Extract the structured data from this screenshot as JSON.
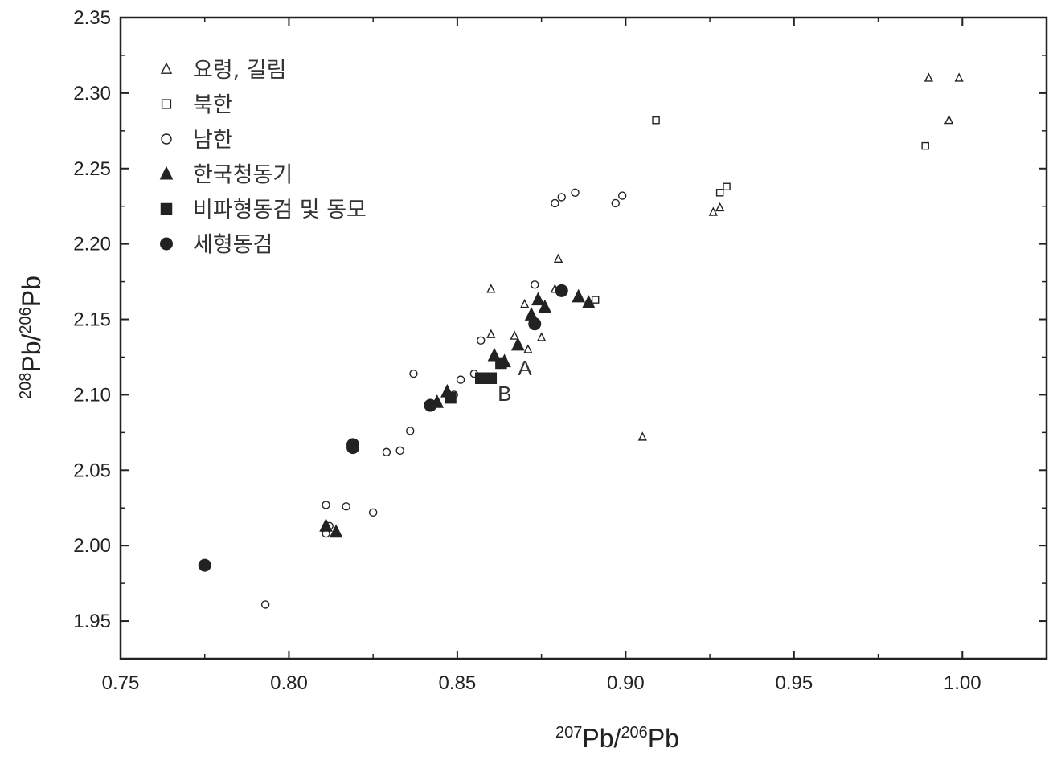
{
  "chart_data": {
    "type": "scatter",
    "xlabel": {
      "pre_sup": "207",
      "base": "Pb/",
      "post_sup": "206",
      "tail": "Pb"
    },
    "ylabel": {
      "pre_sup": "208",
      "base": "Pb/",
      "post_sup": "206",
      "tail": "Pb"
    },
    "xlim": [
      0.75,
      1.025
    ],
    "ylim": [
      1.925,
      2.35
    ],
    "xticks": [
      "0.75",
      "0.80",
      "0.85",
      "0.90",
      "0.95",
      "1.00"
    ],
    "yticks": [
      "1.95",
      "2.00",
      "2.05",
      "2.10",
      "2.15",
      "2.20",
      "2.25",
      "2.30",
      "2.35"
    ],
    "grid": false,
    "legend_position": "top-left",
    "series": [
      {
        "name": "요령, 길림",
        "marker": "triangle-open",
        "points": [
          [
            0.99,
            2.31
          ],
          [
            0.999,
            2.31
          ],
          [
            0.996,
            2.282
          ],
          [
            0.926,
            2.221
          ],
          [
            0.928,
            2.224
          ],
          [
            0.88,
            2.19
          ],
          [
            0.86,
            2.17
          ],
          [
            0.87,
            2.16
          ],
          [
            0.86,
            2.14
          ],
          [
            0.867,
            2.139
          ],
          [
            0.875,
            2.138
          ],
          [
            0.871,
            2.13
          ],
          [
            0.905,
            2.072
          ],
          [
            0.879,
            2.17
          ]
        ]
      },
      {
        "name": "북한",
        "marker": "square-open",
        "points": [
          [
            0.909,
            2.282
          ],
          [
            0.989,
            2.265
          ],
          [
            0.928,
            2.234
          ],
          [
            0.93,
            2.238
          ],
          [
            0.891,
            2.163
          ]
        ]
      },
      {
        "name": "남한",
        "marker": "circle-open",
        "points": [
          [
            0.879,
            2.227
          ],
          [
            0.881,
            2.231
          ],
          [
            0.885,
            2.234
          ],
          [
            0.897,
            2.227
          ],
          [
            0.899,
            2.232
          ],
          [
            0.873,
            2.173
          ],
          [
            0.857,
            2.136
          ],
          [
            0.837,
            2.114
          ],
          [
            0.851,
            2.11
          ],
          [
            0.855,
            2.114
          ],
          [
            0.849,
            2.1
          ],
          [
            0.836,
            2.076
          ],
          [
            0.829,
            2.062
          ],
          [
            0.833,
            2.063
          ],
          [
            0.811,
            2.027
          ],
          [
            0.817,
            2.026
          ],
          [
            0.825,
            2.022
          ],
          [
            0.812,
            2.013
          ],
          [
            0.811,
            2.008
          ],
          [
            0.793,
            1.961
          ]
        ]
      },
      {
        "name": "한국청동기",
        "marker": "triangle-filled",
        "points": [
          [
            0.874,
            2.163
          ],
          [
            0.876,
            2.158
          ],
          [
            0.872,
            2.153
          ],
          [
            0.886,
            2.165
          ],
          [
            0.889,
            2.161
          ],
          [
            0.868,
            2.133
          ],
          [
            0.861,
            2.126
          ],
          [
            0.864,
            2.122
          ],
          [
            0.847,
            2.102
          ],
          [
            0.844,
            2.095
          ],
          [
            0.811,
            2.013
          ],
          [
            0.814,
            2.009
          ]
        ]
      },
      {
        "name": "비파형동검 및 동모",
        "marker": "square-filled",
        "points": [
          [
            0.863,
            2.121
          ],
          [
            0.86,
            2.111
          ],
          [
            0.857,
            2.111
          ],
          [
            0.848,
            2.098
          ]
        ]
      },
      {
        "name": "세형동검",
        "marker": "circle-filled",
        "points": [
          [
            0.881,
            2.169
          ],
          [
            0.873,
            2.147
          ],
          [
            0.842,
            2.093
          ],
          [
            0.819,
            2.065
          ],
          [
            0.819,
            2.067
          ],
          [
            0.775,
            1.987
          ]
        ]
      }
    ],
    "annotations": [
      {
        "text": "A",
        "x": 0.868,
        "y": 2.113
      },
      {
        "text": "B",
        "x": 0.862,
        "y": 2.096
      }
    ]
  }
}
